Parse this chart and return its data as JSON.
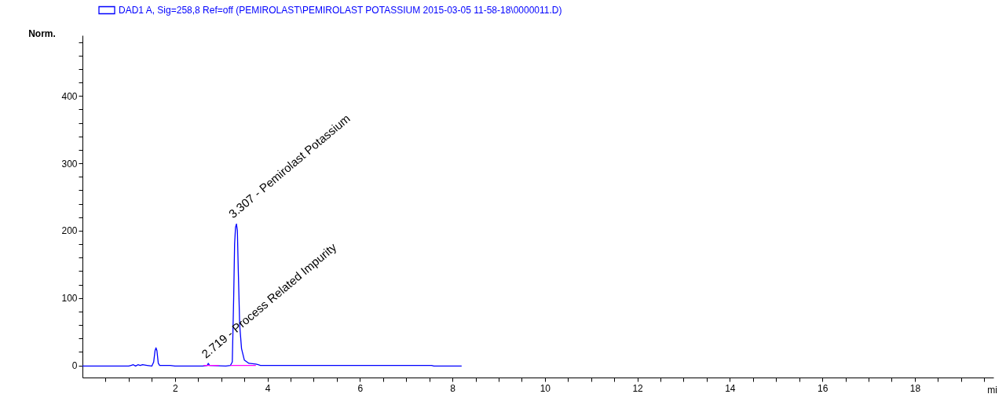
{
  "chart_data": {
    "type": "line",
    "ylabel": "Norm.",
    "xlabel": "mi",
    "legend": "top left",
    "marker": "none",
    "line_style": "solid",
    "xlim": [
      0,
      19.7
    ],
    "ylim": [
      -18,
      490
    ],
    "xticks": [
      {
        "value": 0.5,
        "label": null
      },
      {
        "value": 1,
        "label": null
      },
      {
        "value": 1.5,
        "label": null
      },
      2,
      {
        "value": 2.5,
        "label": null
      },
      {
        "value": 3,
        "label": null
      },
      {
        "value": 3.5,
        "label": null
      },
      4,
      {
        "value": 4.5,
        "label": null
      },
      {
        "value": 5,
        "label": null
      },
      {
        "value": 5.5,
        "label": null
      },
      6,
      {
        "value": 6.5,
        "label": null
      },
      {
        "value": 7,
        "label": null
      },
      {
        "value": 7.5,
        "label": null
      },
      8,
      {
        "value": 8.5,
        "label": null
      },
      {
        "value": 9,
        "label": null
      },
      {
        "value": 9.5,
        "label": null
      },
      10,
      {
        "value": 10.5,
        "label": null
      },
      {
        "value": 11,
        "label": null
      },
      {
        "value": 11.5,
        "label": null
      },
      12,
      {
        "value": 12.5,
        "label": null
      },
      {
        "value": 13,
        "label": null
      },
      {
        "value": 13.5,
        "label": null
      },
      14,
      {
        "value": 14.5,
        "label": null
      },
      {
        "value": 15,
        "label": null
      },
      {
        "value": 15.5,
        "label": null
      },
      16,
      {
        "value": 16.5,
        "label": null
      },
      {
        "value": 17,
        "label": null
      },
      {
        "value": 17.5,
        "label": null
      },
      18,
      {
        "value": 18.5,
        "label": null
      },
      {
        "value": 19,
        "label": null
      },
      {
        "value": 19.5,
        "label": null
      }
    ],
    "yticks": [
      0,
      {
        "value": 20,
        "label": null
      },
      {
        "value": 40,
        "label": null
      },
      {
        "value": 60,
        "label": null
      },
      {
        "value": 80,
        "label": null
      },
      100,
      {
        "value": 120,
        "label": null
      },
      {
        "value": 140,
        "label": null
      },
      {
        "value": 160,
        "label": null
      },
      {
        "value": 180,
        "label": null
      },
      200,
      {
        "value": 220,
        "label": null
      },
      {
        "value": 240,
        "label": null
      },
      {
        "value": 260,
        "label": null
      },
      {
        "value": 280,
        "label": null
      },
      300,
      {
        "value": 320,
        "label": null
      },
      {
        "value": 340,
        "label": null
      },
      {
        "value": 360,
        "label": null
      },
      {
        "value": 380,
        "label": null
      },
      400,
      {
        "value": 420,
        "label": null
      },
      {
        "value": 440,
        "label": null
      },
      {
        "value": 460,
        "label": null
      },
      {
        "value": 480,
        "label": null
      }
    ],
    "series": [
      {
        "name": "DAD1 A, Sig=258,8 Ref=off (PEMIROLAST\\PEMIROLAST POTASSIUM 2015-03-05 11-58-18\\0000011.D)",
        "color": "#0000ff",
        "x": [
          0,
          1.0,
          1.05,
          1.1,
          1.15,
          1.2,
          1.25,
          1.3,
          1.4,
          1.5,
          1.54,
          1.57,
          1.59,
          1.61,
          1.64,
          1.67,
          1.9,
          2.0,
          2.6,
          2.7,
          2.72,
          2.75,
          3.1,
          3.2,
          3.24,
          3.27,
          3.29,
          3.31,
          3.33,
          3.35,
          3.37,
          3.4,
          3.44,
          3.5,
          3.6,
          3.75,
          3.8,
          3.85,
          7.55,
          7.6,
          8.2
        ],
        "values": [
          -1,
          -1,
          0,
          1,
          -1,
          1,
          0,
          1,
          0,
          -1,
          5,
          22,
          26,
          22,
          3,
          0,
          0,
          -1,
          -1,
          0,
          3,
          0,
          -1,
          0,
          5,
          100,
          180,
          205,
          210,
          200,
          140,
          60,
          25,
          8,
          3,
          2,
          1,
          0,
          0,
          -1,
          -1
        ]
      },
      {
        "color": "#ff00ff",
        "x": [
          2.62,
          2.95,
          3.0,
          3.2,
          3.75
        ],
        "values": [
          0,
          0,
          null,
          0,
          0
        ]
      }
    ],
    "annotations": [
      {
        "text": "3.307 - Pemirolast Potassium",
        "x": 3.307,
        "y": 210
      },
      {
        "text": "2.719 - Process Related Impurity",
        "x": 2.719,
        "y": 2
      }
    ]
  }
}
